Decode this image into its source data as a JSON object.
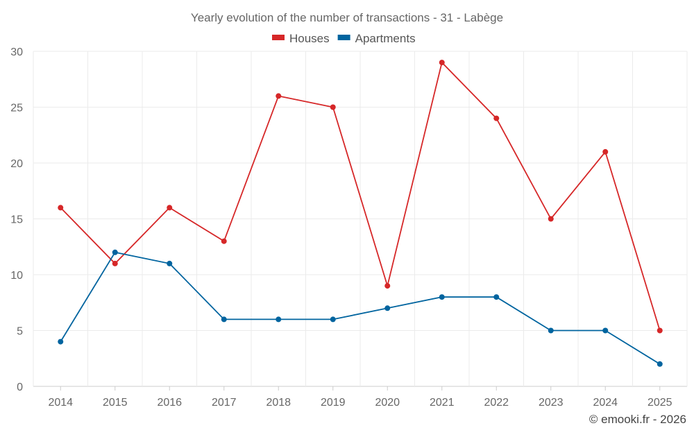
{
  "chart_data": {
    "type": "line",
    "title": "Yearly evolution of the number of transactions - 31 - Labège",
    "xlabel": "",
    "ylabel": "",
    "categories": [
      "2014",
      "2015",
      "2016",
      "2017",
      "2018",
      "2019",
      "2020",
      "2021",
      "2022",
      "2023",
      "2024",
      "2025"
    ],
    "ylim": [
      0,
      30
    ],
    "yticks": [
      0,
      5,
      10,
      15,
      20,
      25,
      30
    ],
    "grid": true,
    "legend_position": "top-center",
    "series": [
      {
        "name": "Houses",
        "color": "#d62728",
        "values": [
          16,
          11,
          16,
          13,
          26,
          25,
          9,
          29,
          24,
          15,
          21,
          5
        ]
      },
      {
        "name": "Apartments",
        "color": "#00649f",
        "values": [
          4,
          12,
          11,
          6,
          6,
          6,
          7,
          8,
          8,
          5,
          5,
          2
        ]
      }
    ]
  },
  "credit": "© emooki.fr - 2026"
}
